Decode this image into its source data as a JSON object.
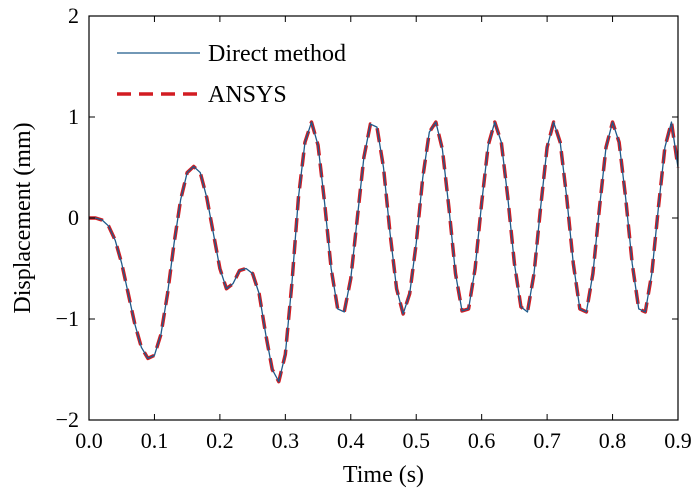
{
  "chart_data": {
    "type": "line",
    "title": "",
    "xlabel": "Time (s)",
    "ylabel": "Displacement (mm)",
    "xlim": [
      0.0,
      0.9
    ],
    "ylim": [
      -2,
      2
    ],
    "x_ticks": [
      "0.0",
      "0.1",
      "0.2",
      "0.3",
      "0.4",
      "0.5",
      "0.6",
      "0.7",
      "0.8",
      "0.9"
    ],
    "y_ticks": [
      "−2",
      "−1",
      "0",
      "1",
      "2"
    ],
    "grid": false,
    "legend_position": "top-left",
    "series": [
      {
        "name": "Direct method",
        "style": "solid",
        "color": "#1f5a8a",
        "x": [
          0.0,
          0.01,
          0.02,
          0.03,
          0.04,
          0.05,
          0.06,
          0.07,
          0.08,
          0.09,
          0.1,
          0.11,
          0.12,
          0.13,
          0.14,
          0.15,
          0.16,
          0.17,
          0.18,
          0.19,
          0.2,
          0.21,
          0.22,
          0.23,
          0.24,
          0.25,
          0.26,
          0.27,
          0.28,
          0.29,
          0.3,
          0.31,
          0.32,
          0.33,
          0.34,
          0.35,
          0.36,
          0.37,
          0.38,
          0.39,
          0.4,
          0.41,
          0.42,
          0.43,
          0.44,
          0.45,
          0.46,
          0.47,
          0.48,
          0.49,
          0.5,
          0.51,
          0.52,
          0.53,
          0.54,
          0.55,
          0.56,
          0.57,
          0.58,
          0.59,
          0.6,
          0.61,
          0.62,
          0.63,
          0.64,
          0.65,
          0.66,
          0.67,
          0.68,
          0.69,
          0.7,
          0.71,
          0.72,
          0.73,
          0.74,
          0.75,
          0.76,
          0.77,
          0.78,
          0.79,
          0.8,
          0.81,
          0.82,
          0.83,
          0.84,
          0.85,
          0.86,
          0.87,
          0.88,
          0.89,
          0.9
        ],
        "y": [
          0.0,
          0.0,
          -0.02,
          -0.08,
          -0.22,
          -0.45,
          -0.75,
          -1.05,
          -1.28,
          -1.39,
          -1.36,
          -1.15,
          -0.75,
          -0.25,
          0.18,
          0.45,
          0.51,
          0.45,
          0.2,
          -0.15,
          -0.5,
          -0.7,
          -0.65,
          -0.52,
          -0.5,
          -0.55,
          -0.75,
          -1.15,
          -1.5,
          -1.62,
          -1.35,
          -0.65,
          0.2,
          0.75,
          0.95,
          0.72,
          0.15,
          -0.5,
          -0.9,
          -0.93,
          -0.6,
          0.0,
          0.6,
          0.93,
          0.9,
          0.5,
          -0.15,
          -0.7,
          -0.95,
          -0.75,
          -0.25,
          0.4,
          0.85,
          0.95,
          0.68,
          0.1,
          -0.55,
          -0.92,
          -0.9,
          -0.5,
          0.15,
          0.72,
          0.95,
          0.75,
          0.2,
          -0.45,
          -0.88,
          -0.93,
          -0.55,
          0.1,
          0.7,
          0.95,
          0.75,
          0.2,
          -0.45,
          -0.9,
          -0.93,
          -0.55,
          0.1,
          0.7,
          0.95,
          0.75,
          0.2,
          -0.45,
          -0.9,
          -0.93,
          -0.55,
          0.1,
          0.7,
          0.95,
          0.5
        ]
      },
      {
        "name": "ANSYS",
        "style": "dashed",
        "color": "#d21c22",
        "x": [
          0.0,
          0.01,
          0.02,
          0.03,
          0.04,
          0.05,
          0.06,
          0.07,
          0.08,
          0.09,
          0.1,
          0.11,
          0.12,
          0.13,
          0.14,
          0.15,
          0.16,
          0.17,
          0.18,
          0.19,
          0.2,
          0.21,
          0.22,
          0.23,
          0.24,
          0.25,
          0.26,
          0.27,
          0.28,
          0.29,
          0.3,
          0.31,
          0.32,
          0.33,
          0.34,
          0.35,
          0.36,
          0.37,
          0.38,
          0.39,
          0.4,
          0.41,
          0.42,
          0.43,
          0.44,
          0.45,
          0.46,
          0.47,
          0.48,
          0.49,
          0.5,
          0.51,
          0.52,
          0.53,
          0.54,
          0.55,
          0.56,
          0.57,
          0.58,
          0.59,
          0.6,
          0.61,
          0.62,
          0.63,
          0.64,
          0.65,
          0.66,
          0.67,
          0.68,
          0.69,
          0.7,
          0.71,
          0.72,
          0.73,
          0.74,
          0.75,
          0.76,
          0.77,
          0.78,
          0.79,
          0.8,
          0.81,
          0.82,
          0.83,
          0.84,
          0.85,
          0.86,
          0.87,
          0.88,
          0.89,
          0.9
        ],
        "y": [
          0.0,
          0.0,
          -0.02,
          -0.08,
          -0.22,
          -0.45,
          -0.75,
          -1.05,
          -1.28,
          -1.39,
          -1.36,
          -1.15,
          -0.75,
          -0.25,
          0.18,
          0.45,
          0.51,
          0.45,
          0.2,
          -0.15,
          -0.5,
          -0.7,
          -0.65,
          -0.52,
          -0.5,
          -0.55,
          -0.75,
          -1.15,
          -1.5,
          -1.62,
          -1.35,
          -0.65,
          0.2,
          0.75,
          0.95,
          0.72,
          0.15,
          -0.5,
          -0.9,
          -0.93,
          -0.6,
          0.0,
          0.6,
          0.93,
          0.9,
          0.5,
          -0.15,
          -0.7,
          -0.95,
          -0.75,
          -0.25,
          0.4,
          0.85,
          0.95,
          0.68,
          0.1,
          -0.55,
          -0.92,
          -0.9,
          -0.5,
          0.15,
          0.72,
          0.95,
          0.75,
          0.2,
          -0.45,
          -0.88,
          -0.93,
          -0.55,
          0.1,
          0.7,
          0.95,
          0.75,
          0.2,
          -0.45,
          -0.9,
          -0.93,
          -0.55,
          0.1,
          0.7,
          0.95,
          0.75,
          0.2,
          -0.45,
          -0.9,
          -0.93,
          -0.55,
          0.1,
          0.7,
          0.95,
          0.5
        ]
      }
    ]
  }
}
